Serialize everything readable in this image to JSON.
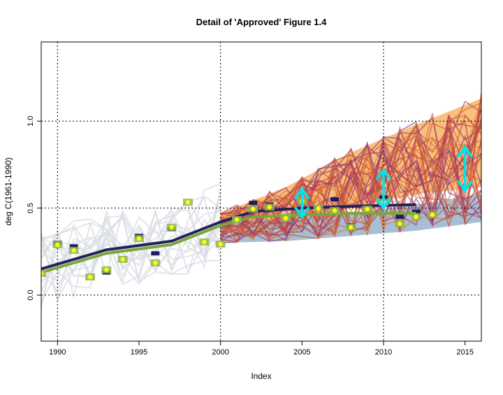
{
  "chart_data": {
    "type": "line",
    "title": "Detail of 'Approved' Figure 1.4",
    "xlabel": "Index",
    "ylabel": "deg C(1961-1990)",
    "xlim": [
      1989,
      2016
    ],
    "ylim": [
      -0.265,
      1.455
    ],
    "grid": true,
    "x_ticks": [
      1990,
      1995,
      2000,
      2005,
      2010,
      2015
    ],
    "x_tick_labels": [
      "1990",
      "1995",
      "2000",
      "2005",
      "2010",
      "2015"
    ],
    "y_ticks": [
      0.0,
      0.5,
      1.0
    ],
    "y_tick_labels": [
      "0.0",
      "0.5",
      "1.0"
    ],
    "vertical_gridlines": [
      1990,
      2000,
      2010
    ],
    "horizontal_gridlines": [
      0.5,
      1.0
    ],
    "observations": {
      "name": "observations",
      "color": "#ffff00",
      "x": [
        1989,
        1990,
        1991,
        1992,
        1993,
        1994,
        1995,
        1996,
        1997,
        1998,
        1999,
        2000,
        2001,
        2002,
        2003,
        2004,
        2005,
        2006,
        2007,
        2008,
        2009,
        2010,
        2011,
        2012,
        2013
      ],
      "y": [
        0.125,
        0.29,
        0.257,
        0.104,
        0.145,
        0.205,
        0.325,
        0.185,
        0.39,
        0.534,
        0.305,
        0.293,
        0.434,
        0.494,
        0.506,
        0.442,
        0.54,
        0.498,
        0.486,
        0.39,
        0.494,
        0.534,
        0.41,
        0.45,
        0.462
      ]
    },
    "other_datasets": {
      "color": "#1c1f5e",
      "x": [
        1990,
        1991,
        1993,
        1995,
        1996,
        1997,
        2002,
        2003,
        2007,
        2008,
        2010,
        2011,
        2012
      ],
      "y": [
        0.3,
        0.28,
        0.13,
        0.34,
        0.24,
        0.38,
        0.53,
        0.52,
        0.55,
        0.4,
        0.56,
        0.45,
        0.48
      ]
    },
    "smoothed_series": [
      {
        "name": "smooth-dark",
        "color": "#23235a",
        "x": [
          1989,
          1993,
          1997,
          2000,
          2002,
          2005,
          2008,
          2012
        ],
        "y": [
          0.15,
          0.26,
          0.31,
          0.42,
          0.48,
          0.5,
          0.51,
          0.52
        ]
      },
      {
        "name": "smooth-green",
        "color": "#7aa63a",
        "x": [
          1989,
          1993,
          1997,
          2000,
          2002,
          2005,
          2008,
          2012
        ],
        "y": [
          0.13,
          0.24,
          0.29,
          0.4,
          0.45,
          0.46,
          0.47,
          0.47
        ]
      }
    ],
    "bands": [
      {
        "name": "projection-orange",
        "color": "#f5a953",
        "x": [
          2000,
          2004,
          2008,
          2012,
          2016
        ],
        "lower": [
          0.35,
          0.42,
          0.5,
          0.58,
          0.62
        ],
        "upper": [
          0.47,
          0.62,
          0.82,
          0.98,
          1.13
        ]
      },
      {
        "name": "projection-blue",
        "color": "#8ba9c4",
        "x": [
          2000,
          2004,
          2008,
          2012,
          2016
        ],
        "lower": [
          0.3,
          0.31,
          0.34,
          0.37,
          0.42
        ],
        "upper": [
          0.42,
          0.44,
          0.47,
          0.52,
          0.58
        ]
      }
    ],
    "model_ensemble": {
      "historical_color": "#d8dbe2",
      "projection_colors": [
        "#c8502a",
        "#d9662e",
        "#b03a5a",
        "#8a3a78",
        "#e07a3a",
        "#a8345a"
      ],
      "count": 40
    },
    "arrows": [
      {
        "x": 2005,
        "y0": 0.45,
        "y1": 0.61,
        "color": "#00e5f0"
      },
      {
        "x": 2010,
        "y0": 0.5,
        "y1": 0.72,
        "color": "#00e5f0"
      },
      {
        "x": 2015,
        "y0": 0.6,
        "y1": 0.85,
        "color": "#00e5f0"
      }
    ]
  }
}
